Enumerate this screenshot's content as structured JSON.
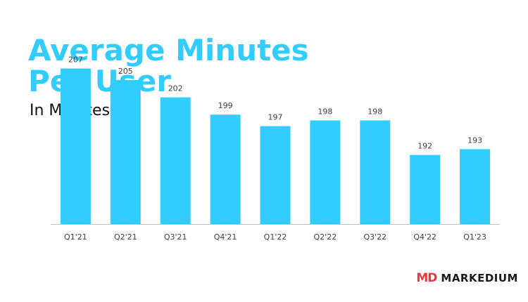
{
  "title_line1": "Average Minutes",
  "title_line2": "Per User",
  "subtitle": "In Minutes",
  "brand": {
    "mark": "MD",
    "name": "MARKEDIUM",
    "mark_color": "#e63a3a"
  },
  "colors": {
    "bar": "#33ccff",
    "title": "#33ccff",
    "axis": "#bfbfbf",
    "label": "#404040"
  },
  "chart_data": {
    "type": "bar",
    "categories": [
      "Q1'21",
      "Q2'21",
      "Q3'21",
      "Q4'21",
      "Q1'22",
      "Q2'22",
      "Q3'22",
      "Q4'22",
      "Q1'23"
    ],
    "values": [
      207,
      205,
      202,
      199,
      197,
      198,
      198,
      192,
      193
    ],
    "ylim": [
      180,
      210
    ],
    "grid": false,
    "legend": "none"
  }
}
